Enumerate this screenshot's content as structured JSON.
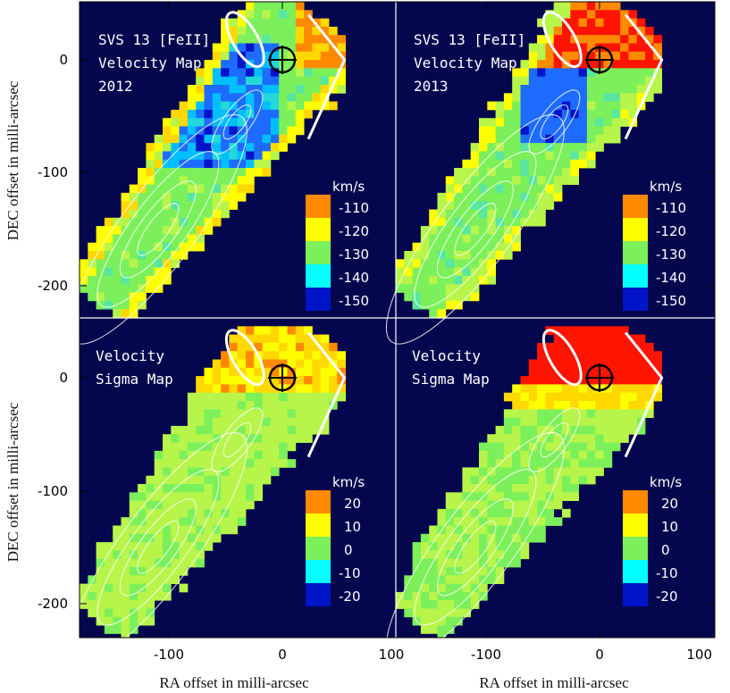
{
  "colors": {
    "background": "#05074e",
    "divider": "#ffffff",
    "scale": [
      "#ff8a00",
      "#ffff00",
      "#7cf05a",
      "#00ffff",
      "#0014c8"
    ],
    "scale_extended": [
      "#ff1400",
      "#ff8a00",
      "#ffd800",
      "#ffff00",
      "#b8f54a",
      "#7cf05a",
      "#58e6a0",
      "#22d8d8",
      "#00bfff",
      "#1e6cff",
      "#0014c8"
    ]
  },
  "chart_data": [
    {
      "type": "heatmap",
      "panel": "top-left",
      "title_lines": [
        "SVS 13 [FeII]",
        "Velocity Map",
        "2012"
      ],
      "colorbar": {
        "unit": "km/s",
        "labels": [
          "-110",
          "-120",
          "-130",
          "-140",
          "-150"
        ]
      },
      "xlim": [
        -180,
        100
      ],
      "ylim": [
        -230,
        45
      ],
      "xticks": [],
      "yticks": [
        "0",
        "-100",
        "-200"
      ],
      "ylabel": "DEC offset in milli-arcsec",
      "xlabel": "",
      "marker": {
        "type": "circled-cross",
        "x": 0,
        "y": 0,
        "color": "#000000"
      },
      "ellipse": {
        "cx": -33,
        "cy": 18,
        "rx": 11,
        "ry": 27,
        "angle": -60,
        "color": "#ffffff"
      },
      "bracket": [
        [
          23,
          40
        ],
        [
          55,
          0
        ],
        [
          23,
          -70
        ]
      ],
      "contour_color": "#ffffff"
    },
    {
      "type": "heatmap",
      "panel": "top-right",
      "title_lines": [
        "SVS 13 [FeII]",
        "Velocity Map",
        "2013"
      ],
      "colorbar": {
        "unit": "km/s",
        "labels": [
          "-110",
          "-120",
          "-130",
          "-140",
          "-150"
        ]
      },
      "xlim": [
        -180,
        100
      ],
      "ylim": [
        -230,
        45
      ],
      "xticks": [],
      "yticks": [],
      "marker": {
        "type": "circled-cross",
        "x": 0,
        "y": 0,
        "color": "#000000"
      },
      "ellipse": {
        "cx": -33,
        "cy": 18,
        "rx": 11,
        "ry": 27,
        "angle": -60,
        "color": "#ffffff"
      },
      "bracket": [
        [
          23,
          40
        ],
        [
          55,
          0
        ],
        [
          23,
          -70
        ]
      ],
      "contour_color": "#ffffff"
    },
    {
      "type": "heatmap",
      "panel": "bottom-left",
      "title_lines": [
        "Velocity",
        "Sigma Map"
      ],
      "colorbar": {
        "unit": "km/s",
        "labels": [
          "20",
          "10",
          "0",
          "-10",
          "-20"
        ]
      },
      "xlim": [
        -180,
        100
      ],
      "ylim": [
        -230,
        45
      ],
      "xticks": [
        "-100",
        "0",
        "100"
      ],
      "yticks": [
        "0",
        "-100",
        "-200"
      ],
      "ylabel": "DEC offset in milli-arcsec",
      "xlabel": "RA offset in milli-arcsec",
      "marker": {
        "type": "circled-cross",
        "x": 0,
        "y": 0,
        "color": "#000000"
      },
      "ellipse": {
        "cx": -33,
        "cy": 18,
        "rx": 11,
        "ry": 27,
        "angle": -60,
        "color": "#ffffff"
      },
      "bracket": [
        [
          23,
          40
        ],
        [
          55,
          0
        ],
        [
          23,
          -70
        ]
      ],
      "contour_color": "#ffffff"
    },
    {
      "type": "heatmap",
      "panel": "bottom-right",
      "title_lines": [
        "Velocity",
        "Sigma Map"
      ],
      "colorbar": {
        "unit": "km/s",
        "labels": [
          "20",
          "10",
          "0",
          "-10",
          "-20"
        ]
      },
      "xlim": [
        -180,
        100
      ],
      "ylim": [
        -230,
        45
      ],
      "xticks": [
        "-100",
        "0",
        "100"
      ],
      "yticks": [],
      "xlabel": "RA offset in milli-arcsec",
      "marker": {
        "type": "circled-cross",
        "x": 0,
        "y": 0,
        "color": "#000000"
      },
      "ellipse": {
        "cx": -33,
        "cy": 18,
        "rx": 11,
        "ry": 27,
        "angle": -60,
        "color": "#ffffff"
      },
      "bracket": [
        [
          23,
          40
        ],
        [
          55,
          0
        ],
        [
          23,
          -70
        ]
      ],
      "contour_color": "#ffffff"
    }
  ]
}
